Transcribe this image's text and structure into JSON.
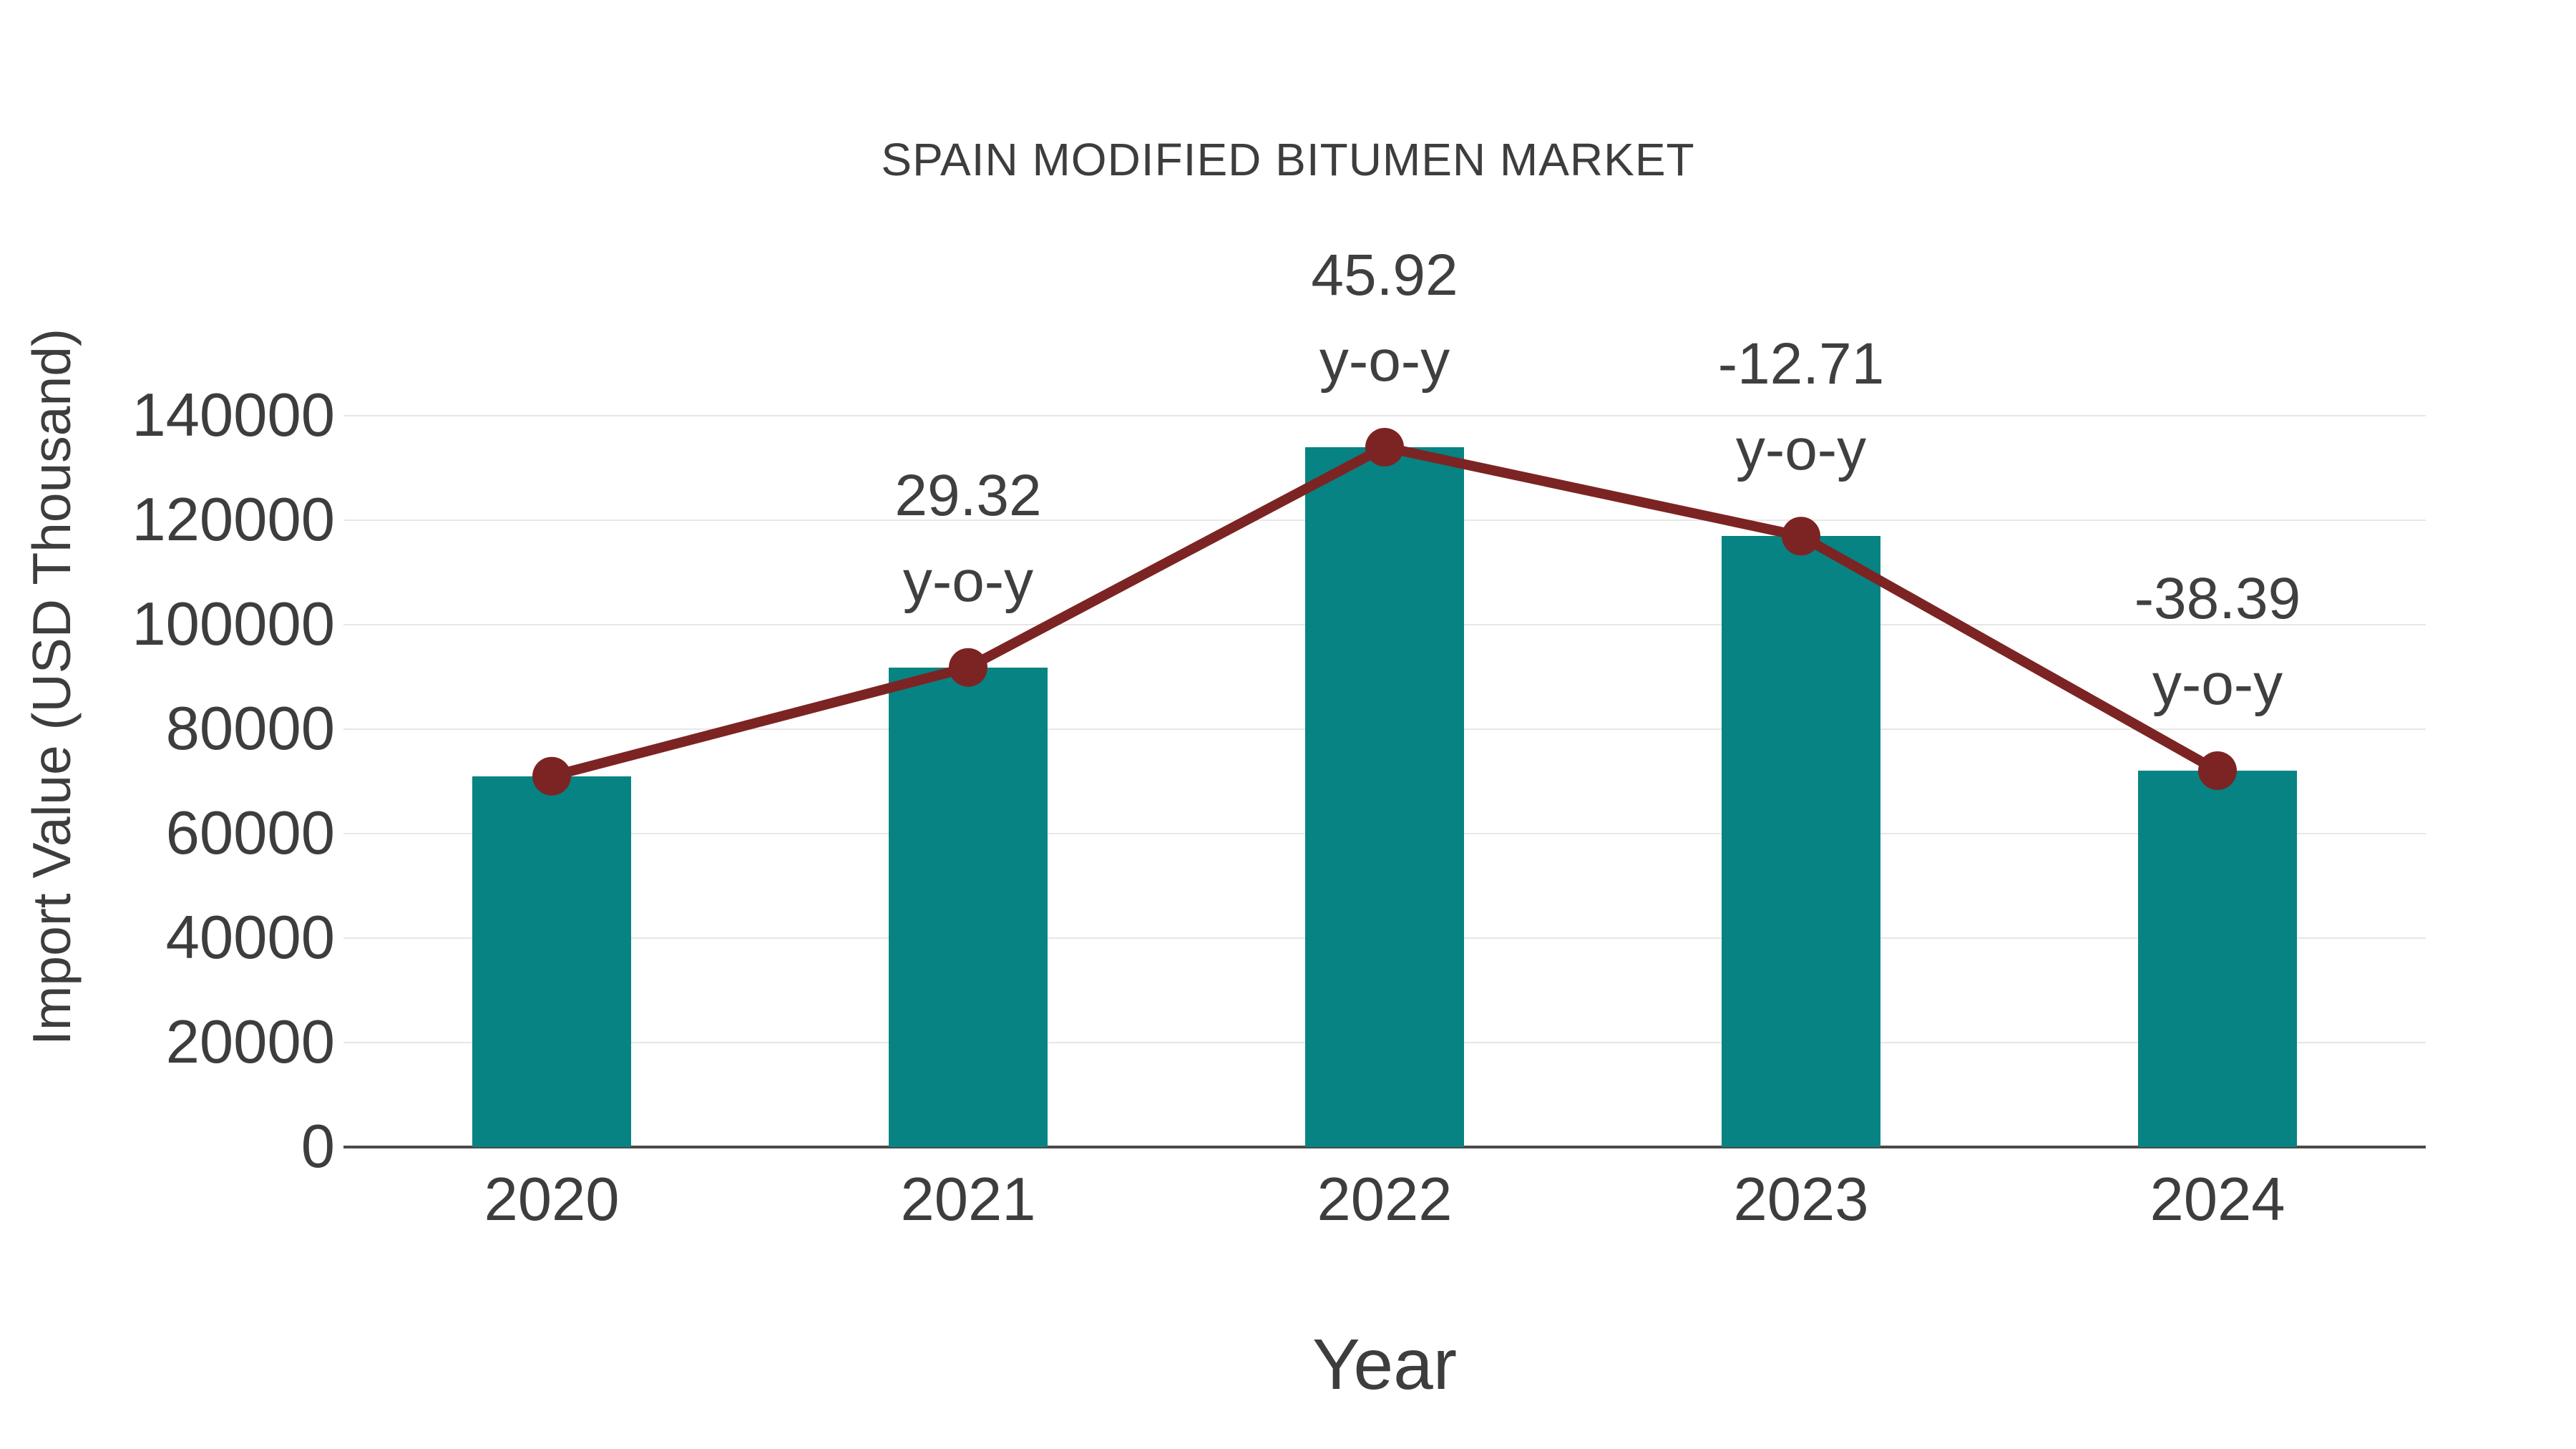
{
  "title": "SPAIN MODIFIED BITUMEN MARKET",
  "chart_data": {
    "type": "bar",
    "subtype": "bar-with-line-overlay",
    "title": "SPAIN MODIFIED BITUMEN MARKET",
    "xlabel": "Year",
    "ylabel": "Import Value (USD Thousand)",
    "categories": [
      "2020",
      "2021",
      "2022",
      "2023",
      "2024"
    ],
    "series": [
      {
        "name": "import-value-bars",
        "type": "bar",
        "values": [
          71000,
          91817,
          133981,
          116953,
          72053
        ],
        "color": "#078383"
      },
      {
        "name": "import-value-trend-line",
        "type": "line",
        "values": [
          71000,
          91817,
          133981,
          116953,
          72053
        ],
        "color": "#7c2423"
      }
    ],
    "annotations": [
      {
        "category": "2021",
        "value_label": "29.32",
        "unit_label": "y-o-y"
      },
      {
        "category": "2022",
        "value_label": "45.92",
        "unit_label": "y-o-y"
      },
      {
        "category": "2023",
        "value_label": "-12.71",
        "unit_label": "y-o-y"
      },
      {
        "category": "2024",
        "value_label": "-38.39",
        "unit_label": "y-o-y"
      }
    ],
    "ylim": [
      0,
      140000
    ],
    "yticks": [
      0,
      20000,
      40000,
      60000,
      80000,
      100000,
      120000,
      140000
    ],
    "ytick_labels": [
      "0",
      "20000",
      "40000",
      "60000",
      "80000",
      "100000",
      "120000",
      "140000"
    ],
    "grid": true,
    "legend_position": "none"
  },
  "colors": {
    "bar": "#078383",
    "line": "#7c2423",
    "marker": "#7c2423",
    "text": "#3d3d3d",
    "gridline": "#e7e7e7",
    "axis": "#4a4a4a",
    "background": "#ffffff"
  }
}
